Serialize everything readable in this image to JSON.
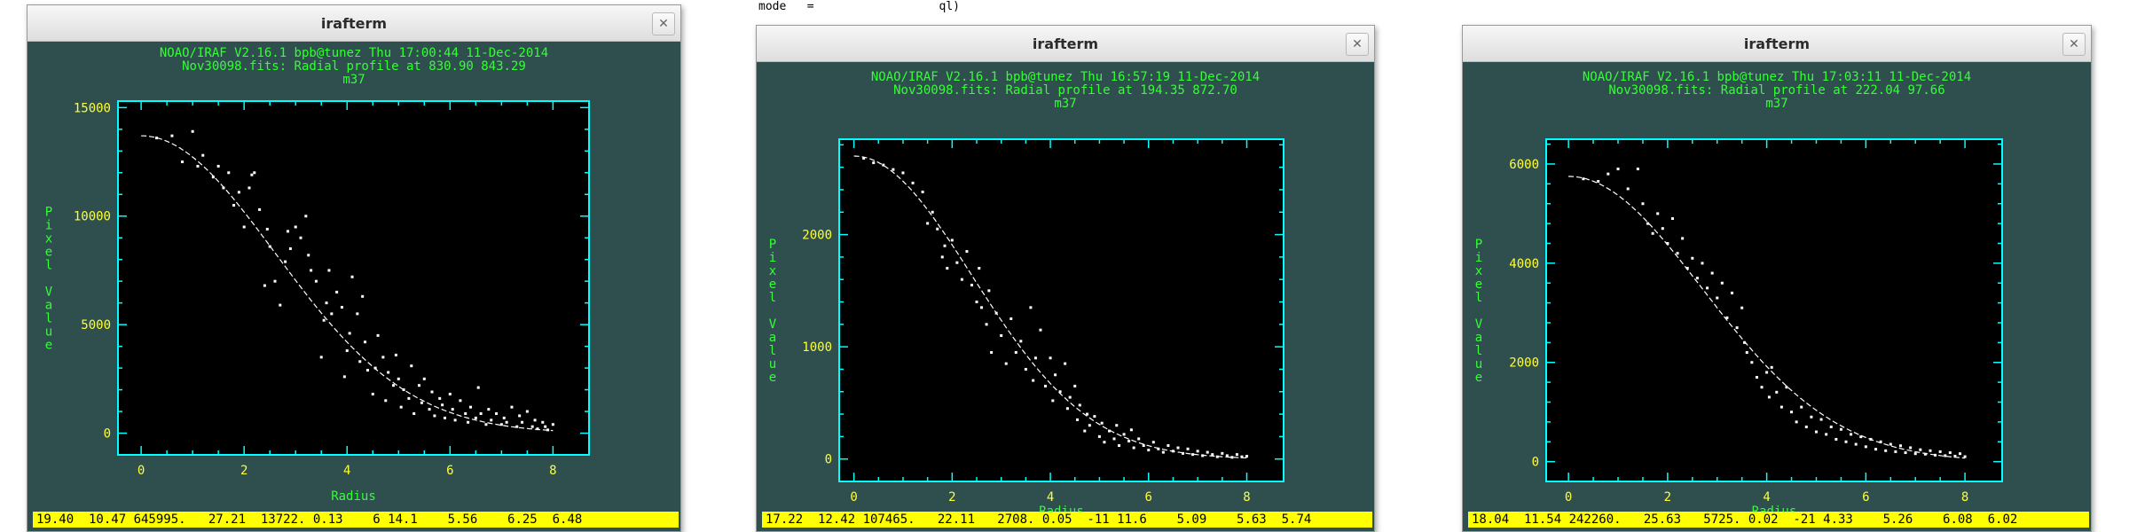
{
  "background_text": "mode   =                  ql)",
  "windows": [
    {
      "title": "irafterm",
      "header": [
        "NOAO/IRAF V2.16.1 bpb@tunez Thu 17:00:44 11-Dec-2014",
        "Nov30098.fits: Radial profile at 830.90 843.29",
        "m37"
      ],
      "status": "19.40  10.47 645995.   27.21  13722. 0.13    6 14.1    5.56    6.25  6.48",
      "chart_data": {
        "type": "scatter",
        "xlabel": "Radius",
        "ylabel": "Pixel Value",
        "xlim": [
          -0.45,
          8.7
        ],
        "ylim": [
          -1000,
          15300
        ],
        "xticks": [
          0,
          2,
          4,
          6,
          8
        ],
        "yticks": [
          0,
          5000,
          10000,
          15000
        ],
        "fit": {
          "amp": 13700,
          "sigma": 2.6
        },
        "points": [
          [
            0.3,
            13600
          ],
          [
            0.6,
            13700
          ],
          [
            0.8,
            12500
          ],
          [
            1.0,
            13900
          ],
          [
            1.1,
            12300
          ],
          [
            1.2,
            12800
          ],
          [
            1.4,
            11800
          ],
          [
            1.5,
            12300
          ],
          [
            1.6,
            11300
          ],
          [
            1.7,
            12000
          ],
          [
            1.8,
            10500
          ],
          [
            1.9,
            11100
          ],
          [
            2.0,
            9500
          ],
          [
            2.1,
            11300
          ],
          [
            2.15,
            11900
          ],
          [
            2.2,
            12000
          ],
          [
            2.3,
            10300
          ],
          [
            2.4,
            6800
          ],
          [
            2.45,
            9400
          ],
          [
            2.5,
            8600
          ],
          [
            2.6,
            7000
          ],
          [
            2.7,
            5900
          ],
          [
            2.8,
            7900
          ],
          [
            2.85,
            9300
          ],
          [
            2.9,
            8500
          ],
          [
            3.0,
            9500
          ],
          [
            3.1,
            9000
          ],
          [
            3.2,
            10000
          ],
          [
            3.25,
            8200
          ],
          [
            3.3,
            7500
          ],
          [
            3.4,
            7000
          ],
          [
            3.5,
            3500
          ],
          [
            3.55,
            5200
          ],
          [
            3.6,
            6000
          ],
          [
            3.65,
            7500
          ],
          [
            3.7,
            5500
          ],
          [
            3.8,
            6500
          ],
          [
            3.9,
            5800
          ],
          [
            3.95,
            2600
          ],
          [
            4.0,
            3800
          ],
          [
            4.05,
            4600
          ],
          [
            4.1,
            7200
          ],
          [
            4.2,
            5500
          ],
          [
            4.25,
            3300
          ],
          [
            4.3,
            6300
          ],
          [
            4.35,
            4200
          ],
          [
            4.4,
            2900
          ],
          [
            4.5,
            1800
          ],
          [
            4.55,
            3000
          ],
          [
            4.6,
            4500
          ],
          [
            4.7,
            3500
          ],
          [
            4.75,
            1500
          ],
          [
            4.8,
            2800
          ],
          [
            4.9,
            2200
          ],
          [
            4.95,
            3600
          ],
          [
            5.0,
            2500
          ],
          [
            5.05,
            1200
          ],
          [
            5.1,
            2000
          ],
          [
            5.2,
            1600
          ],
          [
            5.25,
            3100
          ],
          [
            5.3,
            900
          ],
          [
            5.4,
            2200
          ],
          [
            5.45,
            1400
          ],
          [
            5.5,
            2500
          ],
          [
            5.6,
            1100
          ],
          [
            5.65,
            1900
          ],
          [
            5.7,
            800
          ],
          [
            5.8,
            1600
          ],
          [
            5.85,
            1300
          ],
          [
            5.9,
            700
          ],
          [
            6.0,
            1800
          ],
          [
            6.05,
            1100
          ],
          [
            6.1,
            600
          ],
          [
            6.2,
            1500
          ],
          [
            6.3,
            900
          ],
          [
            6.35,
            500
          ],
          [
            6.4,
            1200
          ],
          [
            6.5,
            700
          ],
          [
            6.55,
            2100
          ],
          [
            6.6,
            900
          ],
          [
            6.7,
            400
          ],
          [
            6.75,
            1100
          ],
          [
            6.8,
            600
          ],
          [
            6.9,
            900
          ],
          [
            7.0,
            400
          ],
          [
            7.05,
            700
          ],
          [
            7.1,
            500
          ],
          [
            7.2,
            1200
          ],
          [
            7.3,
            300
          ],
          [
            7.35,
            800
          ],
          [
            7.4,
            500
          ],
          [
            7.5,
            1000
          ],
          [
            7.6,
            300
          ],
          [
            7.65,
            600
          ],
          [
            7.7,
            200
          ],
          [
            7.8,
            500
          ],
          [
            7.85,
            300
          ],
          [
            7.9,
            150
          ],
          [
            8.0,
            400
          ]
        ]
      }
    },
    {
      "title": "irafterm",
      "header": [
        "NOAO/IRAF V2.16.1 bpb@tunez Thu 16:57:19 11-Dec-2014",
        "Nov30098.fits: Radial profile at 194.35 872.70",
        "m37"
      ],
      "status": "17.22  12.42 107465.   22.11   2708. 0.05  -11 11.6    5.09    5.63  5.74",
      "chart_data": {
        "type": "scatter",
        "xlabel": "Radius",
        "ylabel": "Pixel Value",
        "xlim": [
          -0.3,
          8.75
        ],
        "ylim": [
          -200,
          2850
        ],
        "xticks": [
          0,
          2,
          4,
          6,
          8
        ],
        "yticks": [
          0,
          1000,
          2000
        ],
        "fit": {
          "amp": 2700,
          "sigma": 2.4
        },
        "points": [
          [
            0.2,
            2680
          ],
          [
            0.4,
            2640
          ],
          [
            0.6,
            2620
          ],
          [
            0.8,
            2580
          ],
          [
            1.0,
            2550
          ],
          [
            1.2,
            2460
          ],
          [
            1.4,
            2380
          ],
          [
            1.5,
            2100
          ],
          [
            1.6,
            2200
          ],
          [
            1.7,
            2050
          ],
          [
            1.8,
            1800
          ],
          [
            1.85,
            1900
          ],
          [
            1.9,
            1700
          ],
          [
            2.0,
            1950
          ],
          [
            2.1,
            1750
          ],
          [
            2.2,
            1600
          ],
          [
            2.3,
            1850
          ],
          [
            2.4,
            1550
          ],
          [
            2.5,
            1400
          ],
          [
            2.55,
            1700
          ],
          [
            2.6,
            1350
          ],
          [
            2.7,
            1200
          ],
          [
            2.75,
            1500
          ],
          [
            2.8,
            950
          ],
          [
            2.9,
            1300
          ],
          [
            3.0,
            1100
          ],
          [
            3.1,
            850
          ],
          [
            3.2,
            1250
          ],
          [
            3.3,
            950
          ],
          [
            3.4,
            1050
          ],
          [
            3.5,
            800
          ],
          [
            3.6,
            1350
          ],
          [
            3.65,
            700
          ],
          [
            3.7,
            900
          ],
          [
            3.8,
            1150
          ],
          [
            3.9,
            650
          ],
          [
            4.0,
            900
          ],
          [
            4.05,
            520
          ],
          [
            4.1,
            750
          ],
          [
            4.2,
            600
          ],
          [
            4.3,
            850
          ],
          [
            4.35,
            450
          ],
          [
            4.4,
            550
          ],
          [
            4.5,
            650
          ],
          [
            4.55,
            350
          ],
          [
            4.6,
            480
          ],
          [
            4.7,
            250
          ],
          [
            4.75,
            400
          ],
          [
            4.8,
            300
          ],
          [
            4.9,
            380
          ],
          [
            5.0,
            200
          ],
          [
            5.05,
            320
          ],
          [
            5.1,
            150
          ],
          [
            5.2,
            250
          ],
          [
            5.3,
            180
          ],
          [
            5.35,
            300
          ],
          [
            5.4,
            120
          ],
          [
            5.5,
            220
          ],
          [
            5.6,
            160
          ],
          [
            5.65,
            260
          ],
          [
            5.7,
            100
          ],
          [
            5.8,
            180
          ],
          [
            5.9,
            120
          ],
          [
            6.0,
            80
          ],
          [
            6.1,
            150
          ],
          [
            6.2,
            90
          ],
          [
            6.3,
            60
          ],
          [
            6.4,
            120
          ],
          [
            6.5,
            70
          ],
          [
            6.6,
            100
          ],
          [
            6.7,
            50
          ],
          [
            6.8,
            90
          ],
          [
            6.9,
            40
          ],
          [
            7.0,
            70
          ],
          [
            7.1,
            30
          ],
          [
            7.2,
            60
          ],
          [
            7.3,
            40
          ],
          [
            7.4,
            20
          ],
          [
            7.5,
            50
          ],
          [
            7.6,
            30
          ],
          [
            7.7,
            15
          ],
          [
            7.8,
            40
          ],
          [
            7.9,
            20
          ],
          [
            8.0,
            25
          ]
        ]
      }
    },
    {
      "title": "irafterm",
      "header": [
        "NOAO/IRAF V2.16.1 bpb@tunez Thu 17:03:11 11-Dec-2014",
        "Nov30098.fits: Radial profile at 222.04 97.66",
        "m37"
      ],
      "status": "18.04  11.54 242260.   25.63   5725. 0.02  -21 4.33    5.26    6.08  6.02",
      "chart_data": {
        "type": "scatter",
        "xlabel": "Radius",
        "ylabel": "Pixel Value",
        "xlim": [
          -0.45,
          8.75
        ],
        "ylim": [
          -400,
          6500
        ],
        "xticks": [
          0,
          2,
          4,
          6,
          8
        ],
        "yticks": [
          0,
          2000,
          4000,
          6000
        ],
        "fit": {
          "amp": 5750,
          "sigma": 2.7
        },
        "points": [
          [
            0.3,
            5700
          ],
          [
            0.6,
            5650
          ],
          [
            0.8,
            5800
          ],
          [
            1.0,
            5900
          ],
          [
            1.2,
            5500
          ],
          [
            1.4,
            5900
          ],
          [
            1.5,
            5200
          ],
          [
            1.6,
            4800
          ],
          [
            1.7,
            4600
          ],
          [
            1.8,
            5000
          ],
          [
            1.9,
            4700
          ],
          [
            2.0,
            4400
          ],
          [
            2.1,
            4900
          ],
          [
            2.2,
            4200
          ],
          [
            2.3,
            4500
          ],
          [
            2.4,
            3900
          ],
          [
            2.5,
            4100
          ],
          [
            2.6,
            3700
          ],
          [
            2.7,
            4000
          ],
          [
            2.8,
            3500
          ],
          [
            2.9,
            3800
          ],
          [
            3.0,
            3300
          ],
          [
            3.1,
            3600
          ],
          [
            3.2,
            2900
          ],
          [
            3.3,
            3400
          ],
          [
            3.4,
            2700
          ],
          [
            3.5,
            3100
          ],
          [
            3.55,
            2400
          ],
          [
            3.6,
            2200
          ],
          [
            3.7,
            2000
          ],
          [
            3.8,
            1700
          ],
          [
            3.9,
            1500
          ],
          [
            4.0,
            1800
          ],
          [
            4.05,
            1300
          ],
          [
            4.1,
            1900
          ],
          [
            4.2,
            1400
          ],
          [
            4.3,
            1100
          ],
          [
            4.4,
            1500
          ],
          [
            4.5,
            1000
          ],
          [
            4.6,
            800
          ],
          [
            4.7,
            1100
          ],
          [
            4.8,
            700
          ],
          [
            4.9,
            900
          ],
          [
            5.0,
            600
          ],
          [
            5.1,
            850
          ],
          [
            5.2,
            550
          ],
          [
            5.3,
            700
          ],
          [
            5.4,
            450
          ],
          [
            5.5,
            650
          ],
          [
            5.6,
            400
          ],
          [
            5.7,
            550
          ],
          [
            5.8,
            350
          ],
          [
            5.9,
            500
          ],
          [
            6.0,
            300
          ],
          [
            6.1,
            450
          ],
          [
            6.2,
            250
          ],
          [
            6.3,
            400
          ],
          [
            6.4,
            220
          ],
          [
            6.5,
            350
          ],
          [
            6.6,
            200
          ],
          [
            6.7,
            320
          ],
          [
            6.8,
            180
          ],
          [
            6.9,
            280
          ],
          [
            7.0,
            160
          ],
          [
            7.1,
            240
          ],
          [
            7.2,
            150
          ],
          [
            7.3,
            220
          ],
          [
            7.4,
            130
          ],
          [
            7.5,
            200
          ],
          [
            7.6,
            120
          ],
          [
            7.7,
            180
          ],
          [
            7.8,
            110
          ],
          [
            7.9,
            160
          ],
          [
            8.0,
            100
          ]
        ]
      }
    }
  ]
}
